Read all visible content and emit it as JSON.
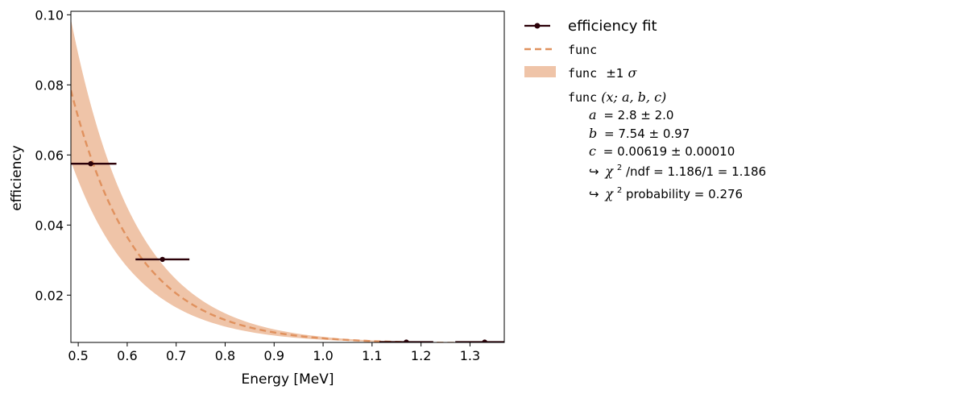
{
  "chart_data": {
    "type": "line",
    "xlabel": "Energy [MeV]",
    "ylabel": "efficiency",
    "xlim": [
      0.485,
      1.37
    ],
    "ylim": [
      0.0065,
      0.101
    ],
    "x_ticks": [
      0.5,
      0.6,
      0.7,
      0.8,
      0.9,
      1.0,
      1.1,
      1.2,
      1.3
    ],
    "x_tick_labels": [
      "0.5",
      "0.6",
      "0.7",
      "0.8",
      "0.9",
      "1.0",
      "1.1",
      "1.2",
      "1.3"
    ],
    "y_ticks": [
      0.02,
      0.04,
      0.06,
      0.08,
      0.1
    ],
    "y_tick_labels": [
      "0.02",
      "0.04",
      "0.06",
      "0.08",
      "0.10"
    ],
    "grid": false,
    "legend_placement": "outside-right",
    "points": [
      {
        "x": 0.5255,
        "y": 0.0575,
        "xerr": 0.0525
      },
      {
        "x": 0.672,
        "y": 0.0302,
        "xerr": 0.055
      },
      {
        "x": 1.17,
        "y": 0.0066,
        "xerr": 0.055
      },
      {
        "x": 1.33,
        "y": 0.0066,
        "xerr": 0.06
      }
    ],
    "fit": {
      "expression": "a*exp(-b*x)+c",
      "a": 2.8,
      "a_err": 2.0,
      "b": 7.54,
      "b_err": 0.97,
      "c": 0.00619,
      "c_err": 0.0001,
      "band_fraction": 0.28
    },
    "colors": {
      "points": "#2b0008",
      "fit_line": "#e0915e",
      "band": "#efc4a8"
    }
  },
  "legend": {
    "points_label": "efficiency fit",
    "func_label": "func",
    "band_prefix": "func",
    "band_suffix": "±1",
    "band_sigma": "σ"
  },
  "fit_box": {
    "func_name": "func",
    "func_args": "(x; a, b, c)",
    "a_name": "a",
    "a_text": "=  2.8 ± 2.0",
    "b_name": "b",
    "b_text": "=  7.54 ± 0.97",
    "c_name": "c",
    "c_text": "=  0.00619 ± 0.00010",
    "arrow": "↪",
    "chi": "χ",
    "sq": "2",
    "ndf_text": "/ndf = 1.186/1 = 1.186",
    "prob_text": " probability = 0.276"
  }
}
